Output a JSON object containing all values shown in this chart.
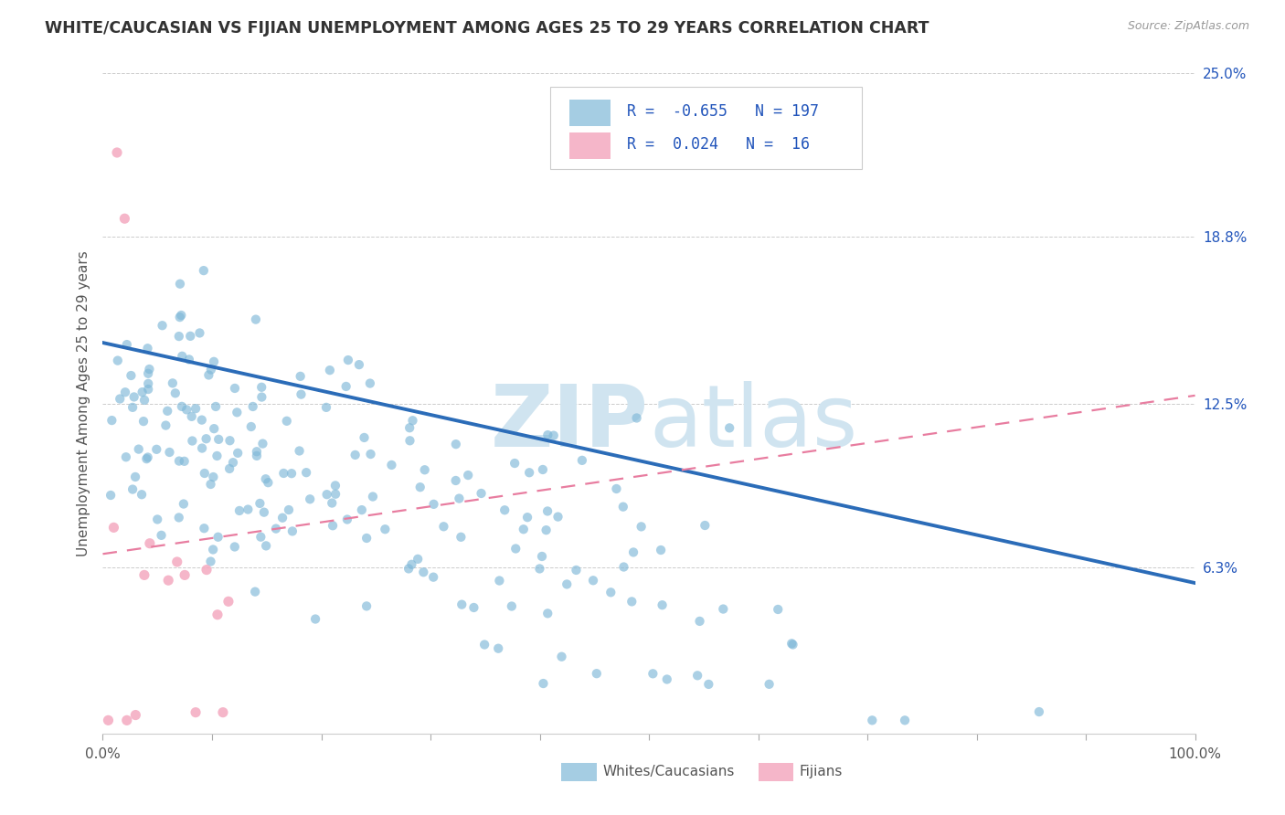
{
  "title": "WHITE/CAUCASIAN VS FIJIAN UNEMPLOYMENT AMONG AGES 25 TO 29 YEARS CORRELATION CHART",
  "source": "Source: ZipAtlas.com",
  "ylabel": "Unemployment Among Ages 25 to 29 years",
  "xlim": [
    0,
    1.0
  ],
  "ylim": [
    0,
    0.25
  ],
  "ytick_right_labels": [
    "25.0%",
    "18.8%",
    "12.5%",
    "6.3%"
  ],
  "ytick_right_values": [
    0.25,
    0.188,
    0.125,
    0.063
  ],
  "white_R": -0.655,
  "white_N": 197,
  "fijian_R": 0.024,
  "fijian_N": 16,
  "white_color": "#7fb8d8",
  "fijian_color": "#f4a9c0",
  "trend_white_color": "#2b6cb8",
  "trend_fijian_color": "#e87da0",
  "watermark_color": "#d0e4f0",
  "background_color": "#ffffff",
  "grid_color": "#cccccc",
  "legend_label_color": "#2255bb",
  "seed": 99,
  "trend_white_y0": 0.148,
  "trend_white_y1": 0.057,
  "trend_fijian_y0": 0.068,
  "trend_fijian_y1": 0.128
}
